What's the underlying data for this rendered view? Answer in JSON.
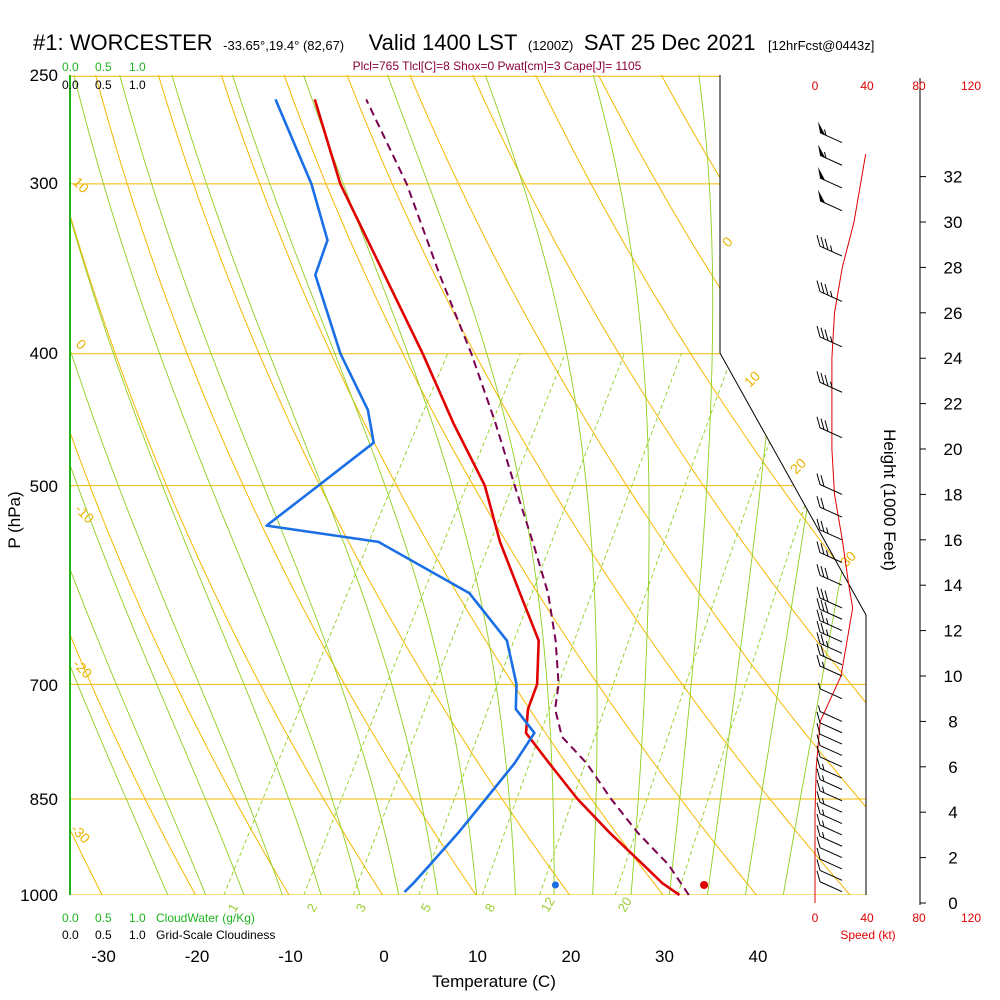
{
  "header": {
    "station": "#1: WORCESTER",
    "coords": "-33.65°,19.4° (82,67)",
    "valid": "Valid 1400 LST",
    "utc": "(1200Z)",
    "date": "SAT 25 Dec 2021",
    "fcst": "[12hrFcst@0443z]"
  },
  "params_line": "Plcl=765 Tlcl[C]=8 Shox=0 Pwat[cm]=3 Cape[J]= 1105",
  "colors": {
    "temp": "#e00000",
    "dewpoint": "#1a6fe6",
    "parcel": "#7a0050",
    "isobar": "#f5b800",
    "dry_adiabat": "#f5b800",
    "moist_adiabat": "#8fcf1f",
    "mixing_ratio": "#8fcf1f",
    "cloud": "#1fb31f",
    "speed": "#e00000"
  },
  "left_scale": {
    "green_ticks": [
      "0.0",
      "0.5",
      "1.0"
    ],
    "black_ticks": [
      "0.0",
      "0.5",
      "1.0"
    ],
    "cloudwater_label": "CloudWater (g/Kg)",
    "cloudiness_label": "Grid-Scale Cloudiness"
  },
  "speed_scale": {
    "ticks": [
      "0",
      "40",
      "80",
      "120"
    ],
    "label": "Speed (kt)"
  },
  "chart_data": {
    "type": "line",
    "title": "#1: WORCESTER Valid 1400 LST (1200Z) SAT 25 Dec 2021",
    "xlabel": "Temperature (C)",
    "ylabel": "P (hPa)",
    "y2label": "Height (1000 Feet)",
    "xlim": [
      -34,
      46
    ],
    "ylim_hpa": [
      1000,
      250
    ],
    "x_ticks": [
      "-30",
      "-20",
      "-10",
      "0",
      "10",
      "20",
      "30",
      "40"
    ],
    "y_ticks": [
      "250",
      "300",
      "400",
      "500",
      "700",
      "850",
      "1000"
    ],
    "height_ticks": [
      "0",
      "2",
      "4",
      "6",
      "8",
      "10",
      "12",
      "14",
      "16",
      "18",
      "20",
      "22",
      "24",
      "26",
      "28",
      "30",
      "32"
    ],
    "mixing_ratio_labels": [
      "1",
      "2",
      "3",
      "5",
      "8",
      "12",
      "20"
    ],
    "dry_adiabat_labels": [
      "10",
      "0",
      "-10",
      "-20",
      "-30"
    ],
    "moist_adiabat_labels": [
      "0",
      "10",
      "20",
      "30"
    ],
    "series": [
      {
        "name": "Temperature",
        "points": [
          [
            1000,
            31.6
          ],
          [
            980,
            29.0
          ],
          [
            950,
            25.8
          ],
          [
            900,
            20.2
          ],
          [
            850,
            14.6
          ],
          [
            800,
            9.3
          ],
          [
            760,
            4.9
          ],
          [
            730,
            3.6
          ],
          [
            700,
            3.0
          ],
          [
            650,
            0.4
          ],
          [
            600,
            -4.6
          ],
          [
            550,
            -10.0
          ],
          [
            500,
            -15.2
          ],
          [
            450,
            -22.5
          ],
          [
            400,
            -30.2
          ],
          [
            350,
            -39.3
          ],
          [
            300,
            -49.8
          ],
          [
            260,
            -57.9
          ]
        ]
      },
      {
        "name": "Dewpoint",
        "points": [
          [
            995,
            2.0
          ],
          [
            980,
            2.4
          ],
          [
            950,
            3.0
          ],
          [
            900,
            4.0
          ],
          [
            850,
            4.8
          ],
          [
            800,
            5.6
          ],
          [
            760,
            5.8
          ],
          [
            730,
            2.3
          ],
          [
            700,
            0.8
          ],
          [
            650,
            -3.0
          ],
          [
            600,
            -10.0
          ],
          [
            550,
            -23.0
          ],
          [
            535,
            -36.0
          ],
          [
            500,
            -33.0
          ],
          [
            465,
            -29.8
          ],
          [
            440,
            -32.5
          ],
          [
            400,
            -39.0
          ],
          [
            350,
            -46.7
          ],
          [
            330,
            -47.6
          ],
          [
            300,
            -52.9
          ],
          [
            260,
            -62.1
          ]
        ]
      },
      {
        "name": "Parcel",
        "points": [
          [
            1000,
            32.6
          ],
          [
            950,
            28.5
          ],
          [
            900,
            23.2
          ],
          [
            850,
            18.2
          ],
          [
            800,
            13.3
          ],
          [
            765,
            9.0
          ],
          [
            730,
            6.5
          ],
          [
            700,
            5.3
          ],
          [
            650,
            2.2
          ],
          [
            600,
            -1.6
          ],
          [
            550,
            -6.5
          ],
          [
            500,
            -12.0
          ],
          [
            450,
            -18.0
          ],
          [
            400,
            -25.0
          ],
          [
            350,
            -33.4
          ],
          [
            300,
            -42.7
          ],
          [
            260,
            -52.4
          ]
        ]
      }
    ],
    "surface_temp": 33.6,
    "surface_dewpoint": 17.7,
    "wind_speed_profile": {
      "name": "Wind speed (kt)",
      "points": [
        [
          0,
          0
        ],
        [
          2,
          0
        ],
        [
          4,
          0
        ],
        [
          6,
          1
        ],
        [
          8,
          4
        ],
        [
          10,
          20
        ],
        [
          12,
          26
        ],
        [
          13,
          29
        ],
        [
          14,
          26
        ],
        [
          16,
          21
        ],
        [
          18,
          15
        ],
        [
          20,
          13
        ],
        [
          22,
          13
        ],
        [
          24,
          13
        ],
        [
          26,
          15
        ],
        [
          28,
          21
        ],
        [
          30,
          30
        ],
        [
          32,
          36
        ],
        [
          33,
          39
        ]
      ]
    },
    "wind_barbs": [
      {
        "h": 0.5,
        "spd": 10
      },
      {
        "h": 1.0,
        "spd": 10
      },
      {
        "h": 1.5,
        "spd": 10
      },
      {
        "h": 2.0,
        "spd": 10
      },
      {
        "h": 2.5,
        "spd": 15
      },
      {
        "h": 3.0,
        "spd": 15
      },
      {
        "h": 3.5,
        "spd": 15
      },
      {
        "h": 4.0,
        "spd": 15
      },
      {
        "h": 4.5,
        "spd": 15
      },
      {
        "h": 5.0,
        "spd": 15
      },
      {
        "h": 5.5,
        "spd": 15
      },
      {
        "h": 6.0,
        "spd": 10
      },
      {
        "h": 6.5,
        "spd": 10
      },
      {
        "h": 7.0,
        "spd": 10
      },
      {
        "h": 7.5,
        "spd": 10
      },
      {
        "h": 8.0,
        "spd": 5
      },
      {
        "h": 9.0,
        "spd": 5
      },
      {
        "h": 10.0,
        "spd": 15
      },
      {
        "h": 10.5,
        "spd": 20
      },
      {
        "h": 11.0,
        "spd": 25
      },
      {
        "h": 11.5,
        "spd": 25
      },
      {
        "h": 12.0,
        "spd": 25
      },
      {
        "h": 12.5,
        "spd": 30
      },
      {
        "h": 13.0,
        "spd": 30
      },
      {
        "h": 14.0,
        "spd": 30
      },
      {
        "h": 15.0,
        "spd": 25
      },
      {
        "h": 16.0,
        "spd": 25
      },
      {
        "h": 17.0,
        "spd": 20
      },
      {
        "h": 18.0,
        "spd": 20
      },
      {
        "h": 20.5,
        "spd": 30
      },
      {
        "h": 22.5,
        "spd": 35
      },
      {
        "h": 24.5,
        "spd": 35
      },
      {
        "h": 26.5,
        "spd": 35
      },
      {
        "h": 28.5,
        "spd": 35
      },
      {
        "h": 30.5,
        "spd": 50
      },
      {
        "h": 31.5,
        "spd": 50
      },
      {
        "h": 32.5,
        "spd": 55
      },
      {
        "h": 33.5,
        "spd": 55
      }
    ]
  }
}
